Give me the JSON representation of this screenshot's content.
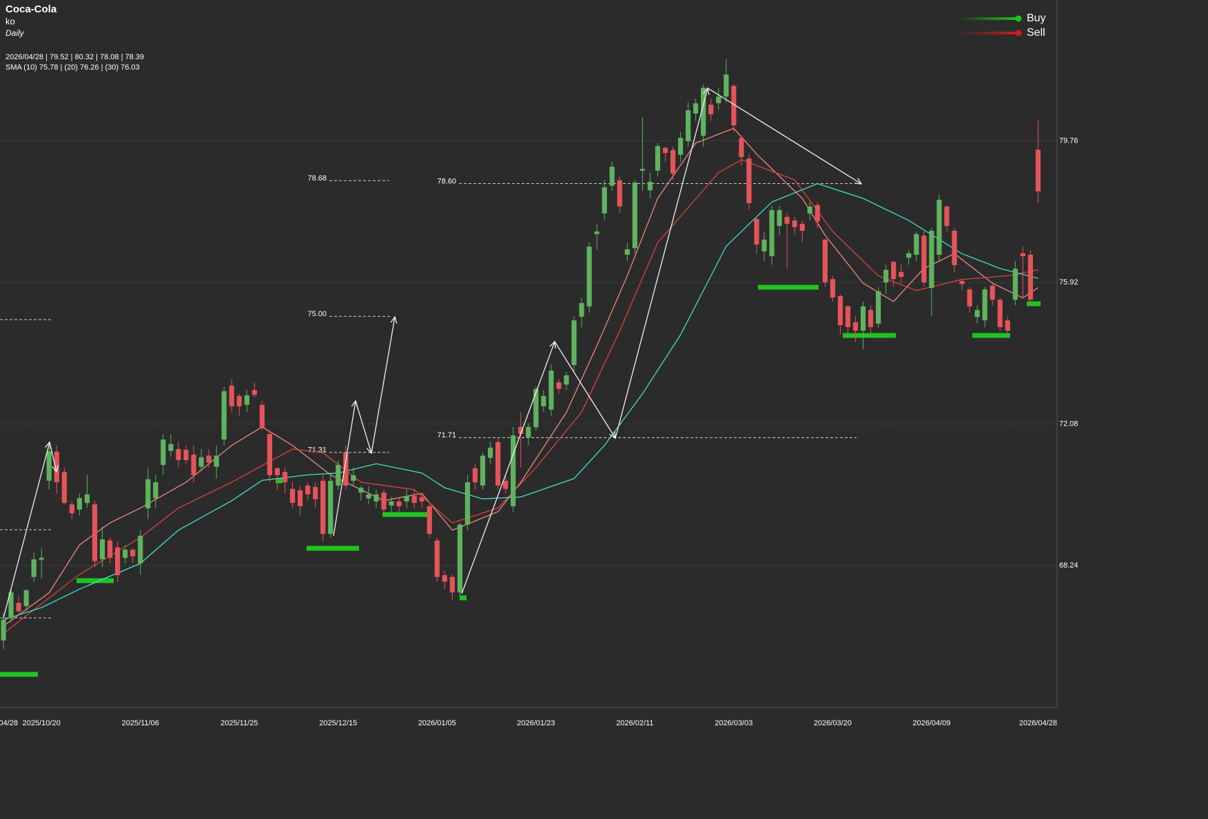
{
  "chart_data": {
    "type": "candlestick",
    "title": "Coca-Cola",
    "subtitle": "ko",
    "interval": "Daily",
    "info": [
      "2026/04/28 | 79.52 | 80.32 | 78.08 | 78.39",
      "SMA (10) 75.78 | (20) 76.26 | (30) 76.03"
    ],
    "categories": [
      "04/28",
      null,
      null,
      null,
      null,
      "2025/10/20",
      null,
      null,
      null,
      null,
      null,
      null,
      null,
      null,
      null,
      null,
      null,
      null,
      "2025/11/06",
      null,
      null,
      null,
      null,
      null,
      null,
      null,
      null,
      null,
      null,
      null,
      null,
      "2025/11/25",
      null,
      null,
      null,
      null,
      null,
      null,
      null,
      null,
      null,
      null,
      null,
      null,
      "2025/12/15",
      null,
      null,
      null,
      null,
      null,
      null,
      null,
      null,
      null,
      null,
      null,
      null,
      "2026/01/05",
      null,
      null,
      null,
      null,
      null,
      null,
      null,
      null,
      null,
      null,
      null,
      null,
      "2026/01/23",
      null,
      null,
      null,
      null,
      null,
      null,
      null,
      null,
      null,
      null,
      null,
      null,
      "2026/02/11",
      null,
      null,
      null,
      null,
      null,
      null,
      null,
      null,
      null,
      null,
      null,
      null,
      "2026/03/03",
      null,
      null,
      null,
      null,
      null,
      null,
      null,
      null,
      null,
      null,
      null,
      null,
      "2026/03/20",
      null,
      null,
      null,
      null,
      null,
      null,
      null,
      null,
      null,
      null,
      null,
      null,
      "2026/04/09",
      null,
      null,
      null,
      null,
      null,
      null,
      null,
      null,
      null,
      null,
      null,
      null,
      null,
      "2026/04/28"
    ],
    "open": [
      66.21,
      66.82,
      67.23,
      67.14,
      67.93,
      68.4,
      70.54,
      71.33,
      70.78,
      69.9,
      69.76,
      69.94,
      69.9,
      68.41,
      68.92,
      68.73,
      68.45,
      68.67,
      68.3,
      69.79,
      70.06,
      70.97,
      71.35,
      71.4,
      71.38,
      71.25,
      70.92,
      71.22,
      70.92,
      71.66,
      73.12,
      72.84,
      72.6,
      73.0,
      72.6,
      71.81,
      70.88,
      70.78,
      70.32,
      70.28,
      70.41,
      70.37,
      70.54,
      69.1,
      70.41,
      71.31,
      70.54,
      70.22,
      70.06,
      69.98,
      70.22,
      69.87,
      69.98,
      69.98,
      70.13,
      70.09,
      69.85,
      68.92,
      67.98,
      67.93,
      67.51,
      69.35,
      70.88,
      70.41,
      71.16,
      71.59,
      70.54,
      69.85,
      72.0,
      71.72,
      71.99,
      72.56,
      72.47,
      73.21,
      73.15,
      73.68,
      74.99,
      75.27,
      77.23,
      77.79,
      78.54,
      78.69,
      76.67,
      76.85,
      78.95,
      78.42,
      78.95,
      79.57,
      79.51,
      79.38,
      79.75,
      80.5,
      79.9,
      80.74,
      80.78,
      80.96,
      81.25,
      79.84,
      79.28,
      77.64,
      76.76,
      76.63,
      77.45,
      77.7,
      77.6,
      77.51,
      77.79,
      78.02,
      77.08,
      76.01,
      75.55,
      75.27,
      74.84,
      74.61,
      75.17,
      74.8,
      75.92,
      76.48,
      76.2,
      76.59,
      76.67,
      77.19,
      75.77,
      76.67,
      77.98,
      77.32,
      75.96,
      75.73,
      74.98,
      74.89,
      75.83,
      75.45,
      74.89,
      75.45,
      76.71,
      76.67,
      79.52
    ],
    "high": [
      66.95,
      67.6,
      67.4,
      67.6,
      68.6,
      68.7,
      71.6,
      71.5,
      70.9,
      70.0,
      70.2,
      70.7,
      70.0,
      69.3,
      69.0,
      68.9,
      68.8,
      68.7,
      69.2,
      70.9,
      70.7,
      71.8,
      71.8,
      71.6,
      71.5,
      71.5,
      71.4,
      71.4,
      71.5,
      73.1,
      73.3,
      72.9,
      73.0,
      73.2,
      72.7,
      71.9,
      70.9,
      70.9,
      70.5,
      70.4,
      70.5,
      70.5,
      70.7,
      70.7,
      71.1,
      71.5,
      70.9,
      70.4,
      70.4,
      70.3,
      70.3,
      70.1,
      70.1,
      70.3,
      70.3,
      70.2,
      69.9,
      69.0,
      68.1,
      68.0,
      69.4,
      70.7,
      71.0,
      71.3,
      71.6,
      71.7,
      70.7,
      72.0,
      72.4,
      72.1,
      73.1,
      73.0,
      73.7,
      73.3,
      73.5,
      75.0,
      75.5,
      77.0,
      77.5,
      78.7,
      79.2,
      78.8,
      77.0,
      78.7,
      80.4,
      78.9,
      79.7,
      79.6,
      79.6,
      80.0,
      80.8,
      80.9,
      81.3,
      80.9,
      81.2,
      81.98,
      81.3,
      79.9,
      79.4,
      77.7,
      77.3,
      78.0,
      78.0,
      77.8,
      77.7,
      77.6,
      78.1,
      78.1,
      77.1,
      76.1,
      75.6,
      75.3,
      75.0,
      75.4,
      75.3,
      75.8,
      76.4,
      76.5,
      76.4,
      76.8,
      77.3,
      77.3,
      77.4,
      78.3,
      78.0,
      77.4,
      76.0,
      75.8,
      75.3,
      75.8,
      75.9,
      75.5,
      75.0,
      76.5,
      76.9,
      76.8,
      80.32
    ],
    "low": [
      65.98,
      66.7,
      66.9,
      67.0,
      67.8,
      67.9,
      70.3,
      70.2,
      69.9,
      69.5,
      69.6,
      69.8,
      68.2,
      68.2,
      68.3,
      67.8,
      68.3,
      68.3,
      68.0,
      69.5,
      69.8,
      70.7,
      71.2,
      70.9,
      71.0,
      70.5,
      70.8,
      70.9,
      70.6,
      71.5,
      72.4,
      72.3,
      72.4,
      72.8,
      71.9,
      70.5,
      70.3,
      70.2,
      69.8,
      69.6,
      70.0,
      69.8,
      68.9,
      69.0,
      70.3,
      70.3,
      70.4,
      70.0,
      69.9,
      69.8,
      69.6,
      69.7,
      69.7,
      69.8,
      69.8,
      69.8,
      69.0,
      67.8,
      67.6,
      67.3,
      67.4,
      69.2,
      70.3,
      70.3,
      71.0,
      70.3,
      70.2,
      69.7,
      70.9,
      71.5,
      71.9,
      72.4,
      72.3,
      72.9,
      73.0,
      73.5,
      74.7,
      75.1,
      76.8,
      77.6,
      78.4,
      77.8,
      76.5,
      76.7,
      78.4,
      78.2,
      78.8,
      79.2,
      78.7,
      79.2,
      79.6,
      80.3,
      79.6,
      80.3,
      80.6,
      80.8,
      80.0,
      79.1,
      77.9,
      76.7,
      76.5,
      76.4,
      77.2,
      76.3,
      77.2,
      77.0,
      77.6,
      77.4,
      75.8,
      75.4,
      74.5,
      74.5,
      74.3,
      74.1,
      74.5,
      74.7,
      75.6,
      75.8,
      75.9,
      76.4,
      76.5,
      75.8,
      75.0,
      76.5,
      77.3,
      76.2,
      75.7,
      75.1,
      74.8,
      74.7,
      75.3,
      74.6,
      74.5,
      75.3,
      75.5,
      75.3,
      78.08
    ],
    "close": [
      66.77,
      67.51,
      67.0,
      67.57,
      68.41,
      68.45,
      71.34,
      70.5,
      69.94,
      69.66,
      70.07,
      70.17,
      68.36,
      68.95,
      68.45,
      67.98,
      68.67,
      68.49,
      69.05,
      70.58,
      70.5,
      71.66,
      71.54,
      71.1,
      71.1,
      70.69,
      71.18,
      71.03,
      71.22,
      72.97,
      72.56,
      72.56,
      72.86,
      72.87,
      71.99,
      70.69,
      70.69,
      70.5,
      69.94,
      69.85,
      70.17,
      70.04,
      69.1,
      70.54,
      70.97,
      70.41,
      70.69,
      70.35,
      70.17,
      70.17,
      69.76,
      69.98,
      69.85,
      70.13,
      69.94,
      69.98,
      69.1,
      67.93,
      67.8,
      67.51,
      69.35,
      70.5,
      70.5,
      71.22,
      71.44,
      70.41,
      70.32,
      71.77,
      71.81,
      72.0,
      73.03,
      72.84,
      73.53,
      73.03,
      73.4,
      74.89,
      75.36,
      76.89,
      77.3,
      78.5,
      79.06,
      77.98,
      76.82,
      78.63,
      79.0,
      78.65,
      79.62,
      79.43,
      78.87,
      79.84,
      80.59,
      80.78,
      81.2,
      80.48,
      80.96,
      81.56,
      80.18,
      79.32,
      78.07,
      76.95,
      77.08,
      77.88,
      77.88,
      77.51,
      77.42,
      77.32,
      77.98,
      77.57,
      75.92,
      75.51,
      74.76,
      74.71,
      74.61,
      75.27,
      74.71,
      75.68,
      76.26,
      76.01,
      76.07,
      76.71,
      77.23,
      75.92,
      77.32,
      78.16,
      77.45,
      76.39,
      75.88,
      75.27,
      75.17,
      75.73,
      75.45,
      74.71,
      74.61,
      76.29,
      76.63,
      75.45,
      78.39
    ],
    "up_color": "#5fb35f",
    "down_color": "#e5545a",
    "overlays": [
      {
        "color": "#f08a80",
        "x": [
          0,
          6,
          10,
          14,
          18,
          24,
          30,
          34,
          38,
          43,
          47,
          50,
          55,
          59,
          65,
          68,
          74,
          78,
          82,
          86,
          91,
          96,
          99,
          105,
          108,
          113,
          117,
          121,
          125,
          130,
          134,
          136
        ],
        "values": [
          66.6,
          67.5,
          68.8,
          69.4,
          69.8,
          70.5,
          71.5,
          72.0,
          71.5,
          70.7,
          70.3,
          70.0,
          70.2,
          69.2,
          69.7,
          70.5,
          72.4,
          74.2,
          76.1,
          78.2,
          79.7,
          80.1,
          79.4,
          78.2,
          77.2,
          75.9,
          75.4,
          76.3,
          76.7,
          75.9,
          75.5,
          75.78
        ]
      },
      {
        "color": "#d9443f",
        "x": [
          0,
          10,
          18,
          23,
          30,
          38,
          42,
          47,
          54,
          59,
          65,
          70,
          76,
          81,
          86,
          94,
          97,
          104,
          109,
          115,
          120,
          126,
          132,
          136
        ],
        "values": [
          66.4,
          68.0,
          69.0,
          69.8,
          70.5,
          71.4,
          71.3,
          70.5,
          70.3,
          69.4,
          69.8,
          70.9,
          72.4,
          74.6,
          77.0,
          78.9,
          79.25,
          78.7,
          77.3,
          76.1,
          75.7,
          76.0,
          76.1,
          76.26
        ]
      },
      {
        "color": "#3fe0cc",
        "x": [
          0,
          5,
          10,
          18,
          23,
          30,
          34,
          40,
          44,
          49,
          55,
          58,
          63,
          68,
          75,
          79,
          84,
          89,
          95,
          101,
          107,
          113,
          119,
          126,
          131,
          136
        ],
        "values": [
          66.77,
          67.1,
          67.6,
          68.3,
          69.2,
          70.0,
          70.55,
          70.7,
          70.75,
          71.0,
          70.75,
          70.35,
          70.05,
          70.1,
          70.6,
          71.5,
          72.9,
          74.5,
          76.9,
          78.1,
          78.6,
          78.2,
          77.6,
          76.7,
          76.3,
          76.03
        ]
      }
    ],
    "levels": [
      78.68,
      {
        "value": 75,
        "label": "75.00"
      },
      71.31,
      {
        "value": 78.6,
        "label": "78.60"
      },
      71.71
    ],
    "ylim": [
      64.43,
      83.58
    ],
    "yticks": [
      68.24,
      72.08,
      75.92,
      79.76
    ],
    "grid": true,
    "legend": [
      {
        "name": "Buy",
        "color": "#1fc41f"
      },
      {
        "name": "Sell",
        "color": "#d41a1a"
      }
    ],
    "legend_position": "upper right"
  }
}
